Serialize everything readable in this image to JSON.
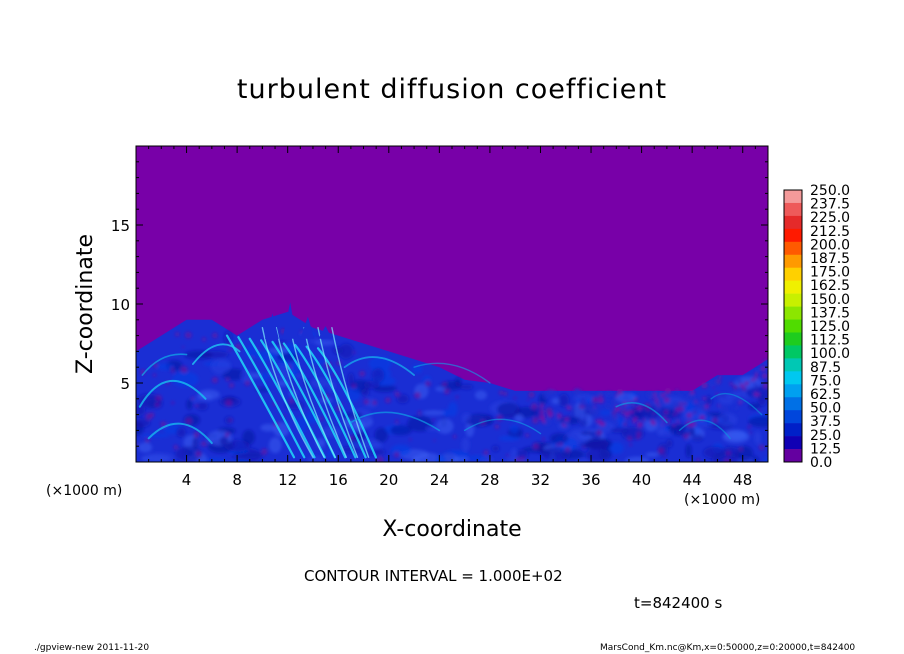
{
  "title": "turbulent diffusion coefficient",
  "contour_interval": "CONTOUR INTERVAL = 1.000E+02",
  "time_label": "t=842400  s",
  "footer_left": "./gpview-new   2011-11-20",
  "footer_right": "MarsCond_Km.nc@Km,x=0:50000,z=0:20000,t=842400",
  "chart_data": {
    "type": "heatmap",
    "title": "turbulent diffusion coefficient",
    "xlabel": "X-coordinate",
    "ylabel": "Z-coordinate",
    "x_unit_label": "(×1000 m)",
    "y_unit_label": "(×1000 m)",
    "xlim": [
      0,
      50
    ],
    "ylim": [
      0,
      20
    ],
    "x_ticks": [
      4,
      8,
      12,
      16,
      20,
      24,
      28,
      32,
      36,
      40,
      44,
      48
    ],
    "y_ticks": [
      5,
      10,
      15
    ],
    "colorbar": {
      "levels": [
        "250.0",
        "237.5",
        "225.0",
        "212.5",
        "200.0",
        "187.5",
        "175.0",
        "162.5",
        "150.0",
        "137.5",
        "125.0",
        "112.5",
        "100.0",
        "87.5",
        "75.0",
        "62.5",
        "50.0",
        "37.5",
        "25.0",
        "12.5",
        "0.0"
      ],
      "colors": [
        "#f49a9a",
        "#ee5a5a",
        "#e52a2a",
        "#ff1a00",
        "#ff5a00",
        "#ff9a00",
        "#ffd000",
        "#f0f000",
        "#c8f000",
        "#8ce600",
        "#50dc00",
        "#1ecc1e",
        "#00c864",
        "#00c8b4",
        "#00c8f0",
        "#00a0f0",
        "#0070e6",
        "#0046dc",
        "#0020c8",
        "#1000b4",
        "#6400a0"
      ]
    },
    "background_color": "#7800a8",
    "turbulent_layer_top": [
      7,
      8,
      9,
      9,
      8,
      9,
      9.5,
      8.5,
      8,
      7.5,
      7,
      6.5,
      6,
      5.2,
      5,
      4.5,
      4.5,
      4.5,
      4.5,
      4.5,
      5.5,
      5.5,
      6.5
    ],
    "turbulent_layer_top_x": [
      0,
      2,
      4,
      6,
      8,
      10,
      12,
      14,
      16,
      18,
      20,
      22,
      24,
      26,
      28,
      30,
      32,
      36,
      40,
      44,
      46,
      48,
      50
    ]
  }
}
